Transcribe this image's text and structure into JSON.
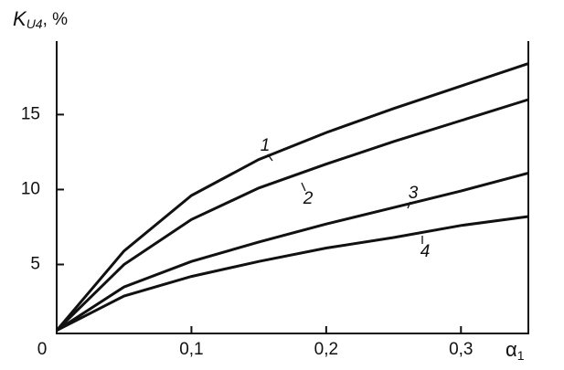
{
  "chart_data": {
    "type": "line",
    "y_label": {
      "symbol": "K",
      "sub": "U4",
      "unit": ", %"
    },
    "x_label": {
      "symbol": "α",
      "sub": "1"
    },
    "x": [
      0,
      0.05,
      0.1,
      0.15,
      0.2,
      0.25,
      0.3,
      0.35
    ],
    "series": [
      {
        "name": "1",
        "color": "#111111",
        "values": [
          0.6,
          5.9,
          9.6,
          12.0,
          13.8,
          15.4,
          16.9,
          18.4
        ]
      },
      {
        "name": "2",
        "color": "#111111",
        "values": [
          0.6,
          5.0,
          8.0,
          10.1,
          11.7,
          13.2,
          14.6,
          16.0
        ]
      },
      {
        "name": "3",
        "color": "#111111",
        "values": [
          0.6,
          3.5,
          5.2,
          6.5,
          7.7,
          8.8,
          9.9,
          11.1
        ]
      },
      {
        "name": "4",
        "color": "#111111",
        "values": [
          0.6,
          2.9,
          4.2,
          5.2,
          6.1,
          6.8,
          7.6,
          8.2
        ]
      }
    ],
    "xlim": [
      0,
      0.35
    ],
    "ylim": [
      0.4,
      19.9
    ],
    "xticks": [
      0,
      {
        "value": 0.1,
        "label": "0,1"
      },
      {
        "value": 0.2,
        "label": "0,2"
      },
      {
        "value": 0.3,
        "label": "0,3"
      }
    ],
    "yticks": [
      5,
      10,
      15
    ],
    "grid": false
  }
}
